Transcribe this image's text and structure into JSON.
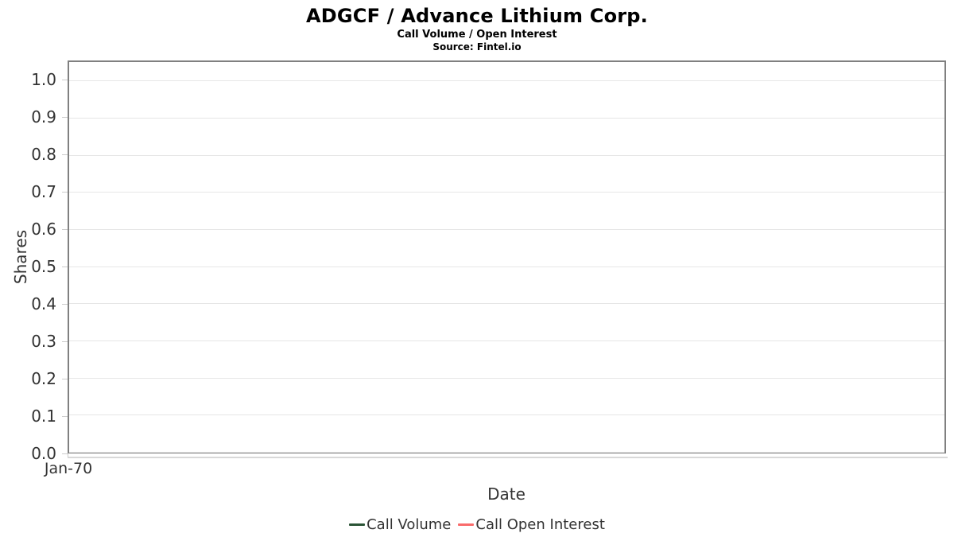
{
  "chart_data": {
    "type": "line",
    "title": "ADGCF / Advance Lithium Corp.",
    "subtitle": "Call Volume / Open Interest",
    "source_note": "Source: Fintel.io",
    "xlabel": "Date",
    "ylabel": "Shares",
    "ylim": [
      0,
      1.05
    ],
    "yticks": [
      0.0,
      0.1,
      0.2,
      0.3,
      0.4,
      0.5,
      0.6,
      0.7,
      0.8,
      0.9,
      1.0
    ],
    "ytick_labels": [
      "0.0",
      "0.1",
      "0.2",
      "0.3",
      "0.4",
      "0.5",
      "0.6",
      "0.7",
      "0.8",
      "0.9",
      "1.0"
    ],
    "xtick_labels": [
      "Jan-70"
    ],
    "grid": true,
    "legend_position": "bottom",
    "plot_border_color": "#808080",
    "gridline_color": "#e6e6e6",
    "tick_color": "#cccccc",
    "axis_line_color": "#d8d8d8",
    "text_color": "#333333",
    "series": [
      {
        "name": "Call Volume",
        "color": "#2a5436",
        "x": [],
        "values": []
      },
      {
        "name": "Call Open Interest",
        "color": "#f96b6b",
        "x": [],
        "values": []
      }
    ]
  }
}
